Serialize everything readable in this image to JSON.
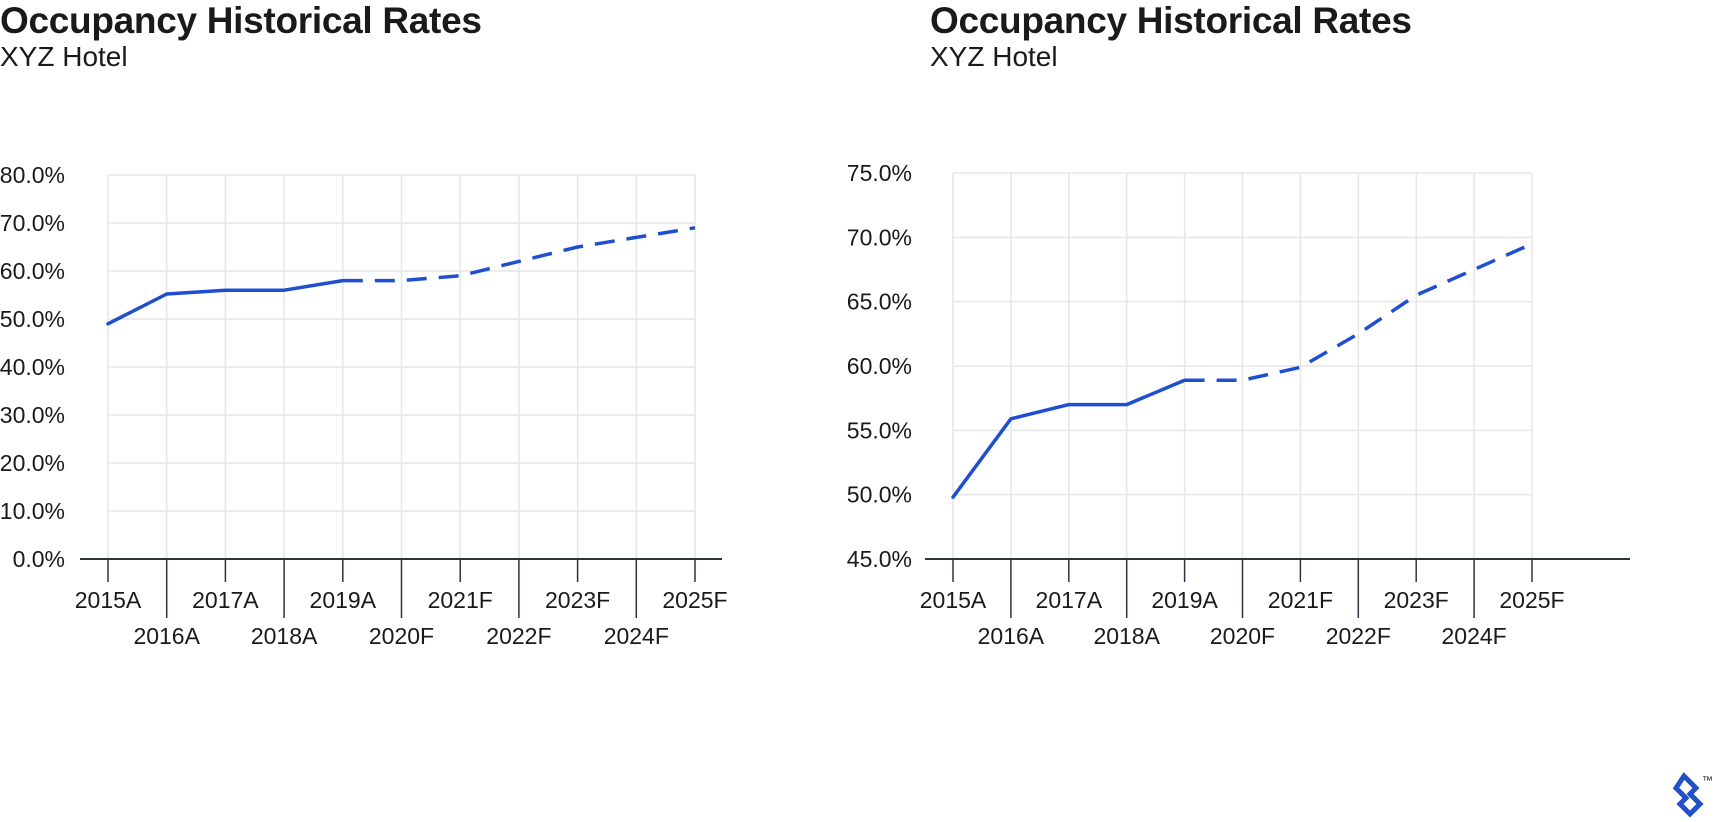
{
  "charts": [
    {
      "title": "Occupancy Historical Rates",
      "subtitle": "XYZ Hotel"
    },
    {
      "title": "Occupancy Historical Rates",
      "subtitle": "XYZ Hotel"
    }
  ],
  "chart_data": [
    {
      "type": "line",
      "title": "Occupancy Historical Rates",
      "subtitle": "XYZ Hotel",
      "categories": [
        "2015A",
        "2016A",
        "2017A",
        "2018A",
        "2019A",
        "2020F",
        "2021F",
        "2022F",
        "2023F",
        "2024F",
        "2025F"
      ],
      "values": [
        49.0,
        55.2,
        56.0,
        56.0,
        58.0,
        58.0,
        59.0,
        62.0,
        65.0,
        67.0,
        69.0
      ],
      "actual_through_index": 4,
      "forecast_style": "dashed",
      "ylim": [
        0,
        80
      ],
      "yticks": [
        "0.0%",
        "10.0%",
        "20.0%",
        "30.0%",
        "40.0%",
        "50.0%",
        "60.0%",
        "70.0%",
        "80.0%"
      ],
      "xlabel": "",
      "ylabel": "",
      "grid": true,
      "line_color": "#1f4fd1"
    },
    {
      "type": "line",
      "title": "Occupancy Historical Rates",
      "subtitle": "XYZ Hotel",
      "categories": [
        "2015A",
        "2016A",
        "2017A",
        "2018A",
        "2019A",
        "2020F",
        "2021F",
        "2022F",
        "2023F",
        "2024F",
        "2025F"
      ],
      "values": [
        49.8,
        55.9,
        57.0,
        57.0,
        58.9,
        58.9,
        59.9,
        62.5,
        65.5,
        67.5,
        69.5
      ],
      "actual_through_index": 4,
      "forecast_style": "dashed",
      "ylim": [
        45,
        75
      ],
      "yticks": [
        "45.0%",
        "50.0%",
        "55.0%",
        "60.0%",
        "65.0%",
        "70.0%",
        "75.0%"
      ],
      "xlabel": "",
      "ylabel": "",
      "grid": true,
      "line_color": "#1f4fd1"
    }
  ],
  "colors": {
    "line": "#1f4fd1",
    "grid": "#e6e6e6",
    "axis": "#2c3440",
    "text": "#1a1a1a",
    "logo": "#2150c8"
  },
  "brand": {
    "logo_icon": "toptal-logo-icon",
    "trademark": "™"
  }
}
